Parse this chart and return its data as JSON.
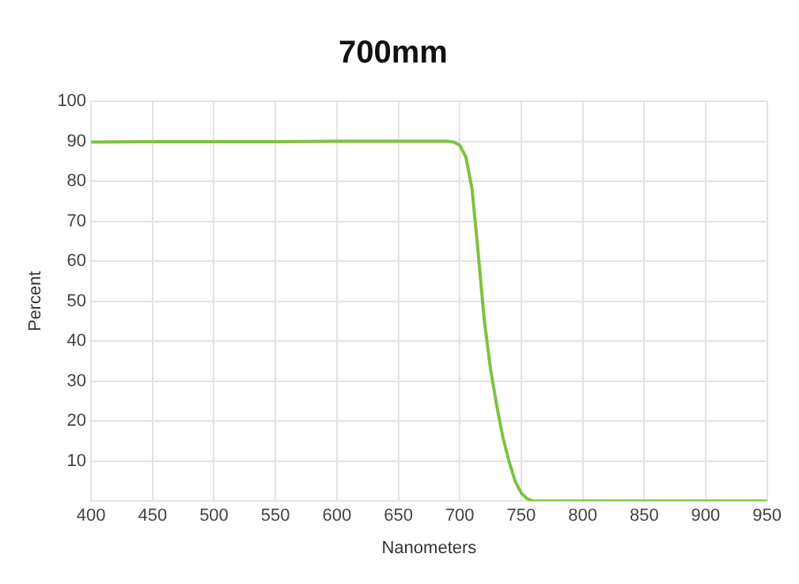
{
  "chart_data": {
    "type": "line",
    "title": "700mm",
    "xlabel": "Nanometers",
    "ylabel": "Percent",
    "x": [
      400,
      450,
      500,
      550,
      600,
      650,
      680,
      690,
      695,
      700,
      705,
      710,
      715,
      720,
      725,
      730,
      735,
      740,
      745,
      750,
      755,
      760,
      770,
      800,
      850,
      900,
      950
    ],
    "series": [
      {
        "color": "#7dc242",
        "values": [
          89.8,
          89.9,
          89.9,
          89.9,
          90,
          90,
          90,
          90,
          89.8,
          89,
          86,
          78,
          62,
          45,
          33,
          24,
          16,
          10,
          5,
          2,
          0.5,
          0,
          0,
          0,
          0,
          0,
          0
        ]
      }
    ],
    "xlim": [
      400,
      950
    ],
    "xticks": [
      400,
      450,
      500,
      550,
      600,
      650,
      700,
      750,
      800,
      850,
      900,
      950
    ],
    "ylim": [
      0,
      100
    ],
    "yticks": [
      {
        "value": 0,
        "label": null
      },
      10,
      20,
      30,
      40,
      50,
      60,
      70,
      80,
      90,
      100
    ],
    "grid": true,
    "marker": "none",
    "line_style": "solid"
  }
}
